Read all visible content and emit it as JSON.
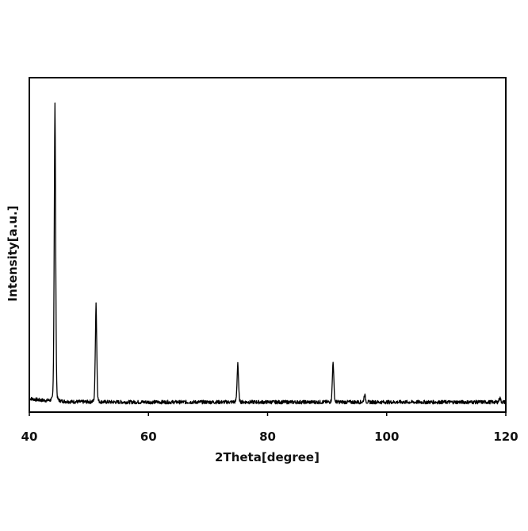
{
  "chart_data": {
    "type": "line",
    "title": "",
    "xlabel": "2Theta[degree]",
    "ylabel": "Intensity[a.u.]",
    "xlim": [
      40,
      120
    ],
    "ylim": [
      0,
      1
    ],
    "grid": false,
    "y_ticks_shown": false,
    "x_ticks": [
      40,
      60,
      80,
      100,
      120
    ],
    "x_tick_labels": [
      "40",
      "60",
      "80",
      "100",
      "120"
    ],
    "series": [
      {
        "color": "#000000",
        "baseline": 0.025,
        "peaks": [
          {
            "x": 44.3,
            "y": 1.0
          },
          {
            "x": 51.2,
            "y": 0.35
          },
          {
            "x": 75.0,
            "y": 0.155
          },
          {
            "x": 91.0,
            "y": 0.16
          },
          {
            "x": 96.3,
            "y": 0.05
          },
          {
            "x": 119.0,
            "y": 0.04
          }
        ]
      }
    ]
  }
}
